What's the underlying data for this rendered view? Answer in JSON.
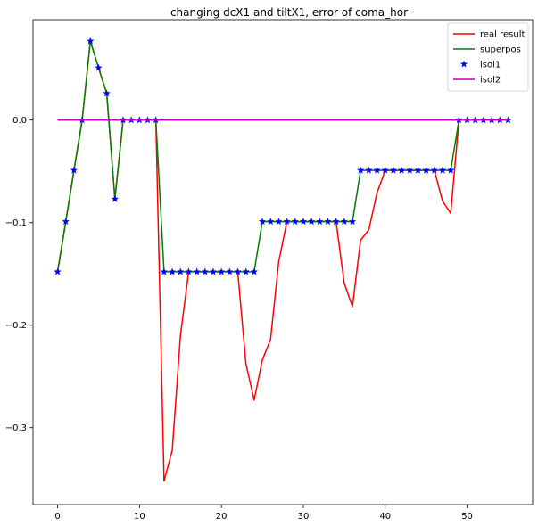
{
  "chart_data": {
    "type": "line",
    "title": "changing dcX1 and tiltX1, error of coma_hor",
    "xlabel": "",
    "ylabel": "",
    "xlim": [
      -3,
      58
    ],
    "ylim": [
      -0.375,
      0.098
    ],
    "xticks": [
      0,
      10,
      20,
      30,
      40,
      50
    ],
    "yticks": [
      0.0,
      -0.1,
      -0.2,
      -0.3
    ],
    "ytick_labels": [
      "0.0",
      "−0.1",
      "−0.2",
      "−0.3"
    ],
    "grid": false,
    "legend_position": "top-right",
    "series": [
      {
        "name": "real result",
        "color": "#ff0000",
        "style": "line",
        "x": [
          0,
          1,
          2,
          3,
          4,
          5,
          6,
          7,
          8,
          9,
          10,
          11,
          12,
          13,
          14,
          15,
          16,
          17,
          18,
          19,
          20,
          21,
          22,
          23,
          24,
          25,
          26,
          27,
          28,
          29,
          30,
          31,
          32,
          33,
          34,
          35,
          36,
          37,
          38,
          39,
          40,
          41,
          42,
          43,
          44,
          45,
          46,
          47,
          48,
          49,
          50,
          51,
          52,
          53,
          54,
          55
        ],
        "values": [
          -0.148,
          -0.099,
          -0.049,
          0.0,
          0.077,
          0.051,
          0.026,
          -0.077,
          0.0,
          0.0,
          0.0,
          0.0,
          0.0,
          -0.352,
          -0.322,
          -0.21,
          -0.148,
          -0.148,
          -0.148,
          -0.148,
          -0.148,
          -0.148,
          -0.148,
          -0.238,
          -0.273,
          -0.234,
          -0.214,
          -0.138,
          -0.099,
          -0.099,
          -0.099,
          -0.099,
          -0.099,
          -0.099,
          -0.099,
          -0.159,
          -0.182,
          -0.117,
          -0.107,
          -0.071,
          -0.049,
          -0.049,
          -0.049,
          -0.049,
          -0.049,
          -0.049,
          -0.049,
          -0.079,
          -0.091,
          0.0,
          0.0,
          0.0,
          0.0,
          0.0,
          0.0,
          0.0
        ]
      },
      {
        "name": "superpos",
        "color": "#008000",
        "style": "line",
        "x": [
          0,
          1,
          2,
          3,
          4,
          5,
          6,
          7,
          8,
          9,
          10,
          11,
          12,
          13,
          14,
          15,
          16,
          17,
          18,
          19,
          20,
          21,
          22,
          23,
          24,
          25,
          26,
          27,
          28,
          29,
          30,
          31,
          32,
          33,
          34,
          35,
          36,
          37,
          38,
          39,
          40,
          41,
          42,
          43,
          44,
          45,
          46,
          47,
          48,
          49,
          50,
          51,
          52,
          53,
          54,
          55
        ],
        "values": [
          -0.148,
          -0.099,
          -0.049,
          0.0,
          0.077,
          0.051,
          0.026,
          -0.077,
          0.0,
          0.0,
          0.0,
          0.0,
          0.0,
          -0.148,
          -0.148,
          -0.148,
          -0.148,
          -0.148,
          -0.148,
          -0.148,
          -0.148,
          -0.148,
          -0.148,
          -0.148,
          -0.148,
          -0.099,
          -0.099,
          -0.099,
          -0.099,
          -0.099,
          -0.099,
          -0.099,
          -0.099,
          -0.099,
          -0.099,
          -0.099,
          -0.099,
          -0.049,
          -0.049,
          -0.049,
          -0.049,
          -0.049,
          -0.049,
          -0.049,
          -0.049,
          -0.049,
          -0.049,
          -0.049,
          -0.049,
          0.0,
          0.0,
          0.0,
          0.0,
          0.0,
          0.0,
          0.0
        ]
      },
      {
        "name": "isol1",
        "color": "#0000ff",
        "style": "star",
        "x": [
          0,
          1,
          2,
          3,
          4,
          5,
          6,
          7,
          8,
          9,
          10,
          11,
          12,
          13,
          14,
          15,
          16,
          17,
          18,
          19,
          20,
          21,
          22,
          23,
          24,
          25,
          26,
          27,
          28,
          29,
          30,
          31,
          32,
          33,
          34,
          35,
          36,
          37,
          38,
          39,
          40,
          41,
          42,
          43,
          44,
          45,
          46,
          47,
          48,
          49,
          50,
          51,
          52,
          53,
          54,
          55
        ],
        "values": [
          -0.148,
          -0.099,
          -0.049,
          0.0,
          0.077,
          0.051,
          0.026,
          -0.077,
          0.0,
          0.0,
          0.0,
          0.0,
          0.0,
          -0.148,
          -0.148,
          -0.148,
          -0.148,
          -0.148,
          -0.148,
          -0.148,
          -0.148,
          -0.148,
          -0.148,
          -0.148,
          -0.148,
          -0.099,
          -0.099,
          -0.099,
          -0.099,
          -0.099,
          -0.099,
          -0.099,
          -0.099,
          -0.099,
          -0.099,
          -0.099,
          -0.099,
          -0.049,
          -0.049,
          -0.049,
          -0.049,
          -0.049,
          -0.049,
          -0.049,
          -0.049,
          -0.049,
          -0.049,
          -0.049,
          -0.049,
          0.0,
          0.0,
          0.0,
          0.0,
          0.0,
          0.0,
          0.0
        ]
      },
      {
        "name": "isol2",
        "color": "#bf00bf",
        "style": "line",
        "x": [
          0,
          55
        ],
        "values": [
          0.0,
          0.0
        ]
      }
    ]
  }
}
